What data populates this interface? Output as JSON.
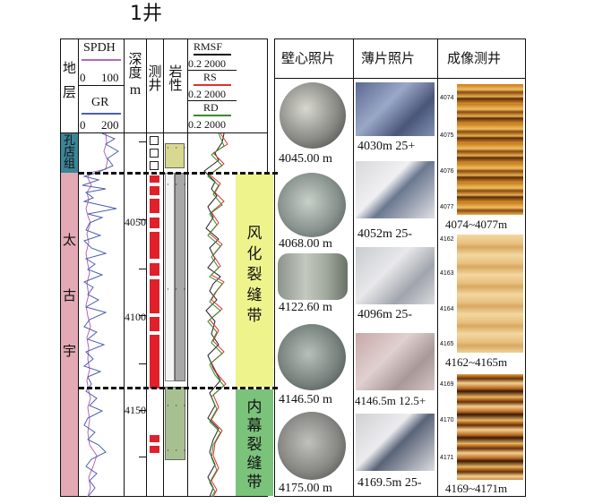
{
  "well_title": "1井",
  "log_header": {
    "stratum": [
      "地",
      "层"
    ],
    "spdh_label": "SPDH",
    "spdh_scale": [
      "0",
      "100"
    ],
    "gr_label": "GR",
    "gr_scale": [
      "0",
      "200"
    ],
    "depth": [
      "深",
      "度"
    ],
    "depth_unit": "m",
    "logging": [
      "测",
      "井"
    ],
    "lithology": [
      "岩",
      "性"
    ],
    "rmsf_label": "RMSF",
    "rmsf_scale": "0.2 2000",
    "rs_label": "RS",
    "rs_scale": "0.2 2000",
    "rd_label": "RD",
    "rd_scale": "0.2 2000"
  },
  "formations": {
    "upper": [
      "孔",
      "店",
      "组"
    ],
    "lower": [
      "太",
      "古",
      "宇"
    ]
  },
  "depth_labels": [
    "4050",
    "4100",
    "4150"
  ],
  "zones": {
    "weathered": [
      "风",
      "化",
      "裂",
      "缝",
      "带"
    ],
    "inner": [
      "内",
      "幕",
      "裂",
      "缝",
      "带"
    ]
  },
  "columns": {
    "core": "壁心照片",
    "thin": "薄片照片",
    "image": "成像测井"
  },
  "core_captions": [
    "4045.00 m",
    "4068.00 m",
    "4122.60 m",
    "4146.50 m",
    "4175.00 m"
  ],
  "thin_captions": [
    "4030m 25+",
    "4052m 25-",
    "4096m 25-",
    "4146.5m 12.5+",
    "4169.5m 25-"
  ],
  "image_captions": [
    "4074~4077m",
    "4162~4165m",
    "4169~4171m"
  ],
  "image_ticks": [
    [
      "4074",
      "4075",
      "4076",
      "4077"
    ],
    [
      "4162",
      "4163",
      "4164",
      "4165"
    ],
    [
      "4169",
      "4170",
      "4171"
    ]
  ],
  "colors": {
    "upper_formation": "#3b8596",
    "lower_formation": "#e3a9b4",
    "weathered_zone": "#eff38c",
    "inner_zone": "#7bc27b",
    "logging_red": "#e0202a",
    "lith_gray": "#a8a8a8",
    "lith_yellow": "#d8d890",
    "lith_green": "#a8c090"
  }
}
